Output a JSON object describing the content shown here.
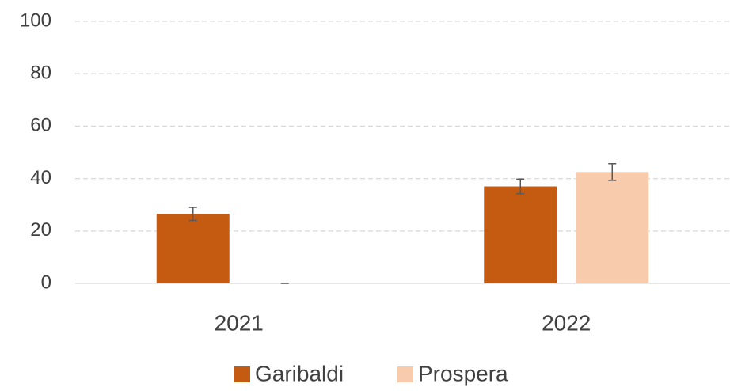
{
  "chart_data": {
    "type": "bar",
    "categories": [
      "2021",
      "2022"
    ],
    "series": [
      {
        "name": "Garibaldi",
        "color": "#c55a11",
        "values": [
          26.5,
          37
        ],
        "errors": [
          2.5,
          2.8
        ]
      },
      {
        "name": "Prospera",
        "color": "#f8cbad",
        "values": [
          0,
          42.5
        ],
        "errors": [
          0,
          3.2
        ]
      }
    ],
    "ylim": [
      0,
      100
    ],
    "yticks": [
      0,
      20,
      40,
      60,
      80,
      100
    ],
    "grid": true,
    "legend": "bottom"
  }
}
